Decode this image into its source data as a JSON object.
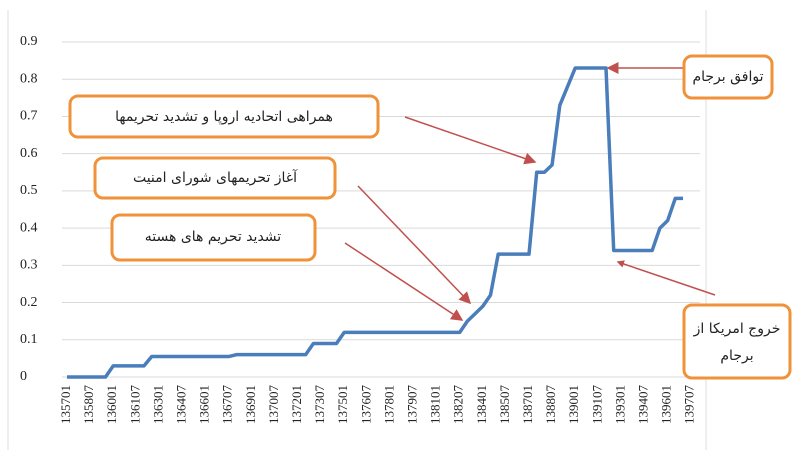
{
  "chart_data": {
    "type": "line",
    "categories": [
      "135701",
      null,
      null,
      "135807",
      null,
      null,
      "136001",
      null,
      null,
      "136107",
      null,
      null,
      "136301",
      null,
      null,
      "136407",
      null,
      null,
      "136601",
      null,
      null,
      "136707",
      null,
      null,
      "136901",
      null,
      null,
      "137007",
      null,
      null,
      "137201",
      null,
      null,
      "137307",
      null,
      null,
      "137501",
      null,
      null,
      "137607",
      null,
      null,
      "137801",
      null,
      null,
      "137907",
      null,
      null,
      "138101",
      null,
      null,
      "138207",
      null,
      null,
      "138401",
      null,
      null,
      "138507",
      null,
      null,
      "138701",
      null,
      null,
      "138807",
      null,
      null,
      "139001",
      null,
      null,
      "139107",
      null,
      null,
      "139301",
      null,
      null,
      "139407",
      null,
      null,
      "139601",
      null,
      null,
      "139707"
    ],
    "values": [
      0,
      0,
      0,
      0,
      0,
      0,
      0.03,
      0.03,
      0.03,
      0.03,
      0.03,
      0.055,
      0.055,
      0.055,
      0.055,
      0.055,
      0.055,
      0.055,
      0.055,
      0.055,
      0.055,
      0.055,
      0.06,
      0.06,
      0.06,
      0.06,
      0.06,
      0.06,
      0.06,
      0.06,
      0.06,
      0.06,
      0.09,
      0.09,
      0.09,
      0.09,
      0.12,
      0.12,
      0.12,
      0.12,
      0.12,
      0.12,
      0.12,
      0.12,
      0.12,
      0.12,
      0.12,
      0.12,
      0.12,
      0.12,
      0.12,
      0.12,
      0.15,
      0.17,
      0.19,
      0.22,
      0.33,
      0.33,
      0.33,
      0.33,
      0.33,
      0.55,
      0.55,
      0.57,
      0.73,
      0.78,
      0.83,
      0.83,
      0.83,
      0.83,
      0.83,
      0.34,
      0.34,
      0.34,
      0.34,
      0.34,
      0.34,
      0.4,
      0.42,
      0.48,
      0.48,
      null
    ],
    "color": "#4a7ebb",
    "ylim": [
      0,
      0.9
    ],
    "yticks": [
      0,
      0.1,
      0.2,
      0.3,
      0.4,
      0.5,
      0.6,
      0.7,
      0.8,
      0.9
    ],
    "grid": true,
    "annotations": [
      {
        "text": "توافق برجام"
      },
      {
        "text": "همراهی اتحادیه اروپا و تشدید تحریمها"
      },
      {
        "text": "آغاز تحریمهای شورای امنیت"
      },
      {
        "text": "تشدید تحریم های هسته"
      },
      {
        "lines": [
          "خروج امریکا از",
          "برجام"
        ]
      }
    ]
  }
}
